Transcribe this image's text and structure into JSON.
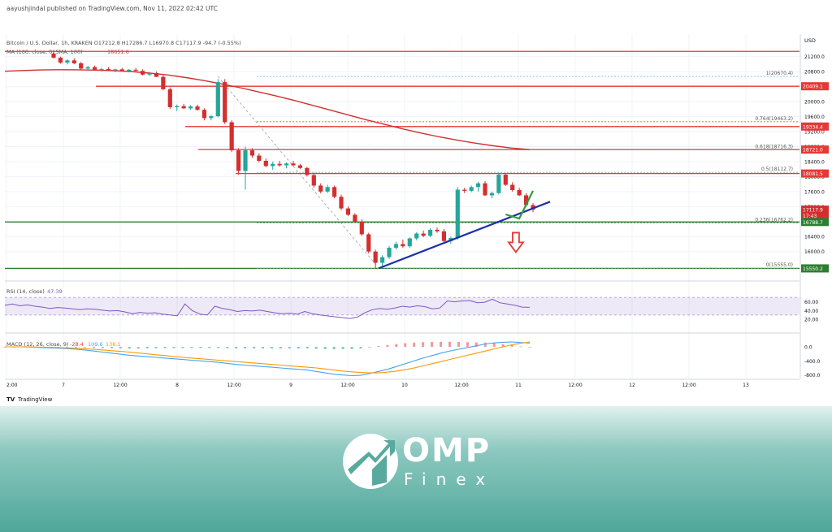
{
  "header": {
    "published": "aayushjindal published on TradingView.com, Nov 11, 2022 02:42 UTC",
    "symbol_line": "Bitcoin / U.S. Dollar, 1h, KRAKEN  O17212.8  H17286.7  L16970.8  C17117.9  -94.7 (-0.55%)",
    "ma_line": "MA (100, close, 0, SMA, 100)",
    "ma_value": "18651.6"
  },
  "footer": {
    "tradingview_label": "TradingView"
  },
  "brand": {
    "name": "OMP",
    "sub": "Finex"
  },
  "colors": {
    "up": "#26a69a",
    "down": "#d32f2f",
    "ma": "#d32f2f",
    "hline": "#e53935",
    "support_line": "#2e7d32",
    "trendline": "#1e2fa8",
    "rsi": "#7e57c2",
    "macd": "#42a5f5",
    "signal": "#ff9800",
    "arrow_green": "#2e9e3a",
    "arrow_red": "#e53935",
    "brand_gradient_top": "#e2f1ee",
    "brand_gradient_bottom": "#4fa79a"
  },
  "chart_data": {
    "type": "candlestick",
    "price_axis": {
      "label": "USD",
      "ylim": [
        15300,
        21800
      ],
      "ticks": [
        21200,
        20800,
        20400,
        20000,
        19600,
        19200,
        18800,
        18400,
        18000,
        17600,
        17200,
        16800,
        16400,
        16000
      ]
    },
    "time_axis": {
      "ticks": [
        "2:00",
        "7",
        "12:00",
        "8",
        "12:00",
        "9",
        "12:00",
        "10",
        "12:00",
        "11",
        "12:00",
        "12",
        "12:00",
        "13"
      ]
    },
    "price_tags": [
      {
        "text": "20409.1",
        "value": 20409.1,
        "color": "#e53935"
      },
      {
        "text": "19334.4",
        "value": 19334.4,
        "color": "#e53935"
      },
      {
        "text": "18721.0",
        "value": 18721.0,
        "color": "#e53935"
      },
      {
        "text": "18081.5",
        "value": 18081.5,
        "color": "#e53935"
      },
      {
        "text": "17117.9",
        "value": 17117.9,
        "color": "#d32f2f"
      },
      {
        "text": "17:43",
        "value": 16960,
        "color": "#d32f2f"
      },
      {
        "text": "16788.7",
        "value": 16788.7,
        "color": "#2e7d32"
      },
      {
        "text": "15550.2",
        "value": 15550.2,
        "color": "#2e7d32"
      }
    ],
    "horizontal_levels": [
      {
        "value": 21340,
        "color": "#e53935"
      },
      {
        "value": 20409.1,
        "color": "#e53935"
      },
      {
        "value": 19334.4,
        "color": "#e53935"
      },
      {
        "value": 18721.0,
        "color": "#e53935"
      },
      {
        "value": 18081.5,
        "color": "#e53935"
      },
      {
        "value": 16788.7,
        "color": "#2e7d32"
      },
      {
        "value": 15550.2,
        "color": "#2e7d32"
      }
    ],
    "fib_levels": [
      {
        "label": "1(20670.4)",
        "value": 20670.4,
        "color": "#64b5f6"
      },
      {
        "label": "0.764(19463.2)",
        "value": 19463.2,
        "color": "#e53935"
      },
      {
        "label": "0.618(18716.3)",
        "value": 18716.3,
        "color": "#43a047"
      },
      {
        "label": "0.5(18112.7)",
        "value": 18112.7,
        "color": "#9e9e9e"
      },
      {
        "label": "0.236(16762.2)",
        "value": 16762.2,
        "color": "#43a047"
      },
      {
        "label": "0(15555.0)",
        "value": 15555.0,
        "color": "#9e9e9e"
      }
    ],
    "candles": [
      [
        21280,
        21380,
        21150,
        21170
      ],
      [
        21170,
        21200,
        21010,
        21040
      ],
      [
        21040,
        21130,
        20990,
        21100
      ],
      [
        21100,
        21160,
        21000,
        21020
      ],
      [
        21020,
        21060,
        20850,
        20880
      ],
      [
        20880,
        20950,
        20820,
        20920
      ],
      [
        20920,
        20960,
        20830,
        20850
      ],
      [
        20850,
        20900,
        20800,
        20870
      ],
      [
        20870,
        20920,
        20820,
        20840
      ],
      [
        20840,
        20880,
        20780,
        20860
      ],
      [
        20860,
        20900,
        20800,
        20810
      ],
      [
        20810,
        20870,
        20780,
        20850
      ],
      [
        20850,
        20900,
        20810,
        20820
      ],
      [
        20820,
        20860,
        20700,
        20720
      ],
      [
        20720,
        20790,
        20680,
        20760
      ],
      [
        20760,
        20800,
        20650,
        20660
      ],
      [
        20660,
        20700,
        20300,
        20330
      ],
      [
        20330,
        20380,
        19800,
        19850
      ],
      [
        19850,
        19920,
        19750,
        19880
      ],
      [
        19880,
        19940,
        19800,
        19820
      ],
      [
        19820,
        19900,
        19780,
        19870
      ],
      [
        19870,
        19920,
        19760,
        19780
      ],
      [
        19780,
        19820,
        19500,
        19560
      ],
      [
        19560,
        19640,
        19500,
        19610
      ],
      [
        19610,
        20600,
        19580,
        20520
      ],
      [
        20520,
        20600,
        19400,
        19450
      ],
      [
        19450,
        19500,
        18650,
        18700
      ],
      [
        18700,
        18760,
        18050,
        18150
      ],
      [
        18150,
        18800,
        17650,
        18700
      ],
      [
        18700,
        18760,
        18500,
        18560
      ],
      [
        18560,
        18620,
        18380,
        18420
      ],
      [
        18420,
        18480,
        18250,
        18280
      ],
      [
        18280,
        18400,
        18180,
        18340
      ],
      [
        18340,
        18420,
        18260,
        18300
      ],
      [
        18300,
        18380,
        18220,
        18350
      ],
      [
        18350,
        18420,
        18280,
        18300
      ],
      [
        18300,
        18340,
        18200,
        18230
      ],
      [
        18230,
        18260,
        18000,
        18040
      ],
      [
        18040,
        18100,
        17700,
        17760
      ],
      [
        17760,
        17820,
        17550,
        17600
      ],
      [
        17600,
        17780,
        17560,
        17720
      ],
      [
        17720,
        17760,
        17420,
        17460
      ],
      [
        17460,
        17520,
        17100,
        17150
      ],
      [
        17150,
        17200,
        16950,
        16980
      ],
      [
        16980,
        17020,
        16780,
        16800
      ],
      [
        16800,
        16860,
        16420,
        16460
      ],
      [
        16460,
        16500,
        15950,
        16000
      ],
      [
        16000,
        16050,
        15555,
        15700
      ],
      [
        15700,
        15900,
        15600,
        15850
      ],
      [
        15850,
        16150,
        15800,
        16100
      ],
      [
        16100,
        16260,
        16050,
        16200
      ],
      [
        16200,
        16320,
        16100,
        16140
      ],
      [
        16140,
        16380,
        16100,
        16350
      ],
      [
        16350,
        16520,
        16300,
        16480
      ],
      [
        16480,
        16560,
        16380,
        16420
      ],
      [
        16420,
        16620,
        16380,
        16580
      ],
      [
        16580,
        16640,
        16500,
        16540
      ],
      [
        16540,
        16600,
        16250,
        16280
      ],
      [
        16280,
        16400,
        16200,
        16360
      ],
      [
        16360,
        17720,
        16320,
        17650
      ],
      [
        17650,
        17700,
        17560,
        17620
      ],
      [
        17620,
        17760,
        17580,
        17720
      ],
      [
        17720,
        17860,
        17600,
        17820
      ],
      [
        17820,
        17880,
        17480,
        17500
      ],
      [
        17500,
        17600,
        17420,
        17560
      ],
      [
        17560,
        18100,
        17520,
        18050
      ],
      [
        18050,
        18080,
        17750,
        17780
      ],
      [
        17780,
        17850,
        17600,
        17640
      ],
      [
        17640,
        17700,
        17480,
        17500
      ],
      [
        17500,
        17560,
        17200,
        17240
      ],
      [
        17240,
        17290,
        17050,
        17118
      ]
    ],
    "ma100": [
      20810,
      20830,
      20845,
      20850,
      20848,
      20840,
      20825,
      20800,
      20760,
      20710,
      20640,
      20560,
      20470,
      20370,
      20260,
      20150,
      20030,
      19900,
      19770,
      19640,
      19510,
      19390,
      19270,
      19160,
      19060,
      18970,
      18890,
      18820,
      18760,
      18720
    ],
    "rsi": {
      "label": "RSI (14, close)",
      "value_label": "47.39",
      "ylim": [
        0,
        100
      ],
      "ticks": [
        60,
        40,
        20
      ],
      "band": [
        30,
        70
      ],
      "values": [
        52,
        55,
        51,
        53,
        50,
        48,
        45,
        47,
        46,
        44,
        42,
        44,
        43,
        41,
        39,
        40,
        37,
        33,
        36,
        34,
        35,
        32,
        30,
        28,
        55,
        40,
        32,
        30,
        50,
        45,
        42,
        38,
        40,
        39,
        41,
        38,
        35,
        33,
        34,
        32,
        38,
        33,
        30,
        28,
        26,
        24,
        22,
        25,
        35,
        42,
        45,
        43,
        46,
        50,
        48,
        51,
        49,
        44,
        46,
        62,
        60,
        62,
        63,
        58,
        59,
        66,
        58,
        55,
        52,
        48,
        47.39
      ]
    },
    "macd": {
      "label": "MACD (12, 26, close, 9)",
      "values_label": [
        "-28.4",
        "109.6",
        "138.1"
      ],
      "ylim": [
        -900,
        300
      ],
      "ticks": [
        "0.0",
        "-400.0",
        "-800.0"
      ],
      "macd": [
        0,
        0,
        0,
        -10,
        -20,
        -30,
        -40,
        -50,
        -70,
        -90,
        -120,
        -150,
        -180,
        -210,
        -240,
        -260,
        -280,
        -300,
        -320,
        -340,
        -360,
        -380,
        -400,
        -420,
        -440,
        -470,
        -500,
        -520,
        -540,
        -560,
        -580,
        -600,
        -620,
        -640,
        -660,
        -700,
        -740,
        -780,
        -800,
        -820,
        -810,
        -760,
        -700,
        -640,
        -560,
        -480,
        -400,
        -320,
        -250,
        -180,
        -120,
        -70,
        -20,
        30,
        80,
        110,
        130,
        138,
        120,
        109.6
      ],
      "signal": [
        0,
        0,
        0,
        -5,
        -10,
        -15,
        -20,
        -30,
        -40,
        -55,
        -70,
        -90,
        -110,
        -130,
        -150,
        -175,
        -200,
        -225,
        -250,
        -275,
        -300,
        -320,
        -340,
        -360,
        -380,
        -400,
        -420,
        -440,
        -460,
        -480,
        -500,
        -520,
        -540,
        -560,
        -580,
        -600,
        -630,
        -660,
        -690,
        -710,
        -730,
        -740,
        -740,
        -720,
        -690,
        -650,
        -600,
        -540,
        -480,
        -420,
        -360,
        -300,
        -240,
        -180,
        -120,
        -60,
        0,
        60,
        100,
        138.1
      ]
    },
    "annotations": {
      "trendline": [
        [
          47.5,
          15555
        ],
        [
          72.5,
          17330
        ]
      ],
      "fib_diagonal": [
        [
          24,
          20670
        ],
        [
          47.5,
          15555
        ]
      ],
      "green_check": [
        [
          66,
          16990
        ],
        [
          68,
          16880
        ],
        [
          70,
          17620
        ]
      ],
      "red_arrow_at": [
        67.5,
        16200
      ]
    }
  }
}
